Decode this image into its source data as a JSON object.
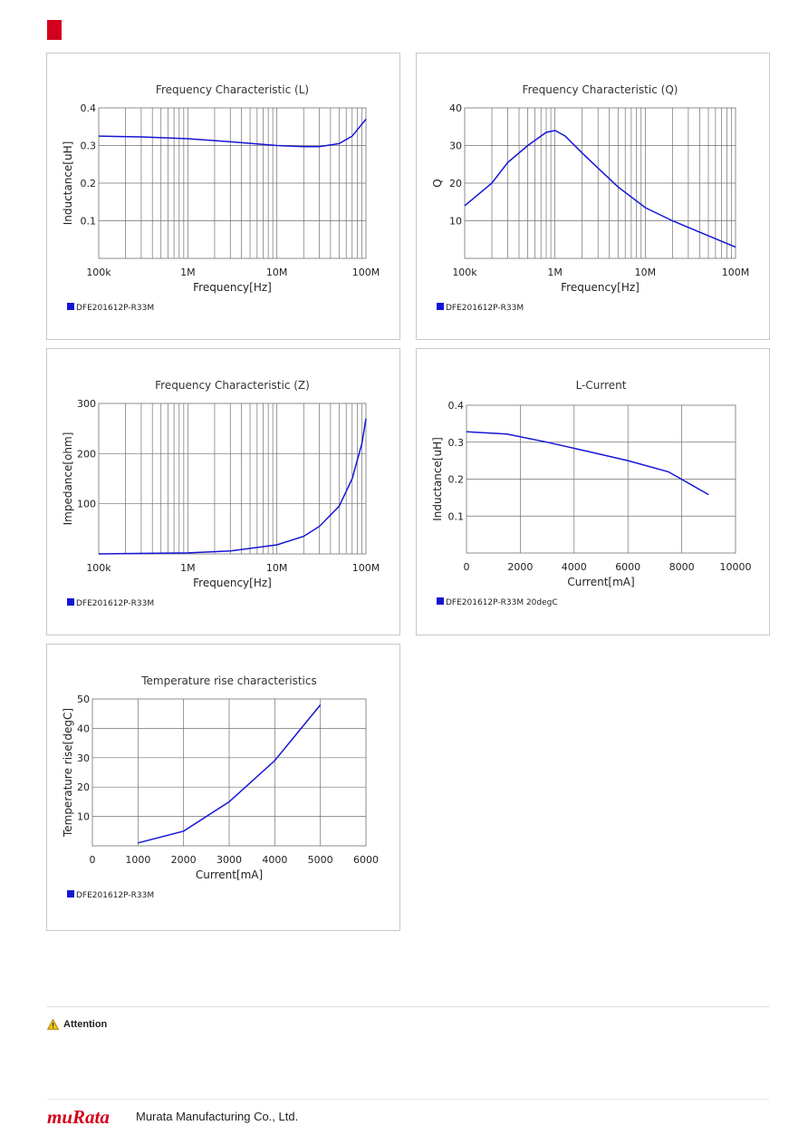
{
  "page": {
    "attention_label": "Attention",
    "company_name": "Murata Manufacturing Co., Ltd.",
    "logo_text": "muRata",
    "brand_color": "#d2001e",
    "series_color": "#1515d6"
  },
  "chart_data": [
    {
      "id": "freq-L",
      "type": "line",
      "title": "Frequency Characteristic (L)",
      "xlabel": "Frequency[Hz]",
      "ylabel": "Inductance[uH]",
      "xscale": "log",
      "xlim": [
        100000,
        100000000
      ],
      "ylim": [
        0,
        0.4
      ],
      "xticks": [
        {
          "v": 100000,
          "label": "100k"
        },
        {
          "v": 1000000,
          "label": "1M"
        },
        {
          "v": 10000000,
          "label": "10M"
        },
        {
          "v": 100000000,
          "label": "100M"
        }
      ],
      "yticks": [
        {
          "v": 0.1,
          "label": "0.1"
        },
        {
          "v": 0.2,
          "label": "0.2"
        },
        {
          "v": 0.3,
          "label": "0.3"
        },
        {
          "v": 0.4,
          "label": "0.4"
        }
      ],
      "legend": "DFE201612P-R33M",
      "series": [
        {
          "name": "DFE201612P-R33M",
          "x": [
            100000,
            300000,
            1000000,
            3000000,
            10000000,
            20000000,
            30000000,
            50000000,
            70000000,
            100000000
          ],
          "y": [
            0.325,
            0.323,
            0.318,
            0.31,
            0.3,
            0.297,
            0.297,
            0.305,
            0.325,
            0.37
          ]
        }
      ]
    },
    {
      "id": "freq-Q",
      "type": "line",
      "title": "Frequency Characteristic (Q)",
      "xlabel": "Frequency[Hz]",
      "ylabel": "Q",
      "xscale": "log",
      "xlim": [
        100000,
        100000000
      ],
      "ylim": [
        0,
        40
      ],
      "xticks": [
        {
          "v": 100000,
          "label": "100k"
        },
        {
          "v": 1000000,
          "label": "1M"
        },
        {
          "v": 10000000,
          "label": "10M"
        },
        {
          "v": 100000000,
          "label": "100M"
        }
      ],
      "yticks": [
        {
          "v": 10,
          "label": "10"
        },
        {
          "v": 20,
          "label": "20"
        },
        {
          "v": 30,
          "label": "30"
        },
        {
          "v": 40,
          "label": "40"
        }
      ],
      "legend": "DFE201612P-R33M",
      "series": [
        {
          "name": "DFE201612P-R33M",
          "x": [
            100000,
            200000,
            300000,
            500000,
            800000,
            1000000,
            1300000,
            2000000,
            3000000,
            5000000,
            10000000,
            20000000,
            50000000,
            100000000
          ],
          "y": [
            14,
            20,
            25.5,
            30,
            33.5,
            34,
            32.5,
            28,
            24,
            19,
            13.5,
            10,
            6,
            3
          ]
        }
      ]
    },
    {
      "id": "freq-Z",
      "type": "line",
      "title": "Frequency Characteristic (Z)",
      "xlabel": "Frequency[Hz]",
      "ylabel": "Impedance[ohm]",
      "xscale": "log",
      "xlim": [
        100000,
        100000000
      ],
      "ylim": [
        0,
        300
      ],
      "xticks": [
        {
          "v": 100000,
          "label": "100k"
        },
        {
          "v": 1000000,
          "label": "1M"
        },
        {
          "v": 10000000,
          "label": "10M"
        },
        {
          "v": 100000000,
          "label": "100M"
        }
      ],
      "yticks": [
        {
          "v": 100,
          "label": "100"
        },
        {
          "v": 200,
          "label": "200"
        },
        {
          "v": 300,
          "label": "300"
        }
      ],
      "legend": "DFE201612P-R33M",
      "series": [
        {
          "name": "DFE201612P-R33M",
          "x": [
            100000,
            1000000,
            3000000,
            10000000,
            20000000,
            30000000,
            50000000,
            70000000,
            90000000,
            100000000
          ],
          "y": [
            0,
            2,
            6,
            18,
            35,
            55,
            95,
            150,
            220,
            270
          ]
        }
      ]
    },
    {
      "id": "l-current",
      "type": "line",
      "title": "L-Current",
      "xlabel": "Current[mA]",
      "ylabel": "Inductance[uH]",
      "xscale": "linear",
      "xlim": [
        0,
        10000
      ],
      "ylim": [
        0,
        0.4
      ],
      "xticks": [
        {
          "v": 0,
          "label": "0"
        },
        {
          "v": 2000,
          "label": "2000"
        },
        {
          "v": 4000,
          "label": "4000"
        },
        {
          "v": 6000,
          "label": "6000"
        },
        {
          "v": 8000,
          "label": "8000"
        },
        {
          "v": 10000,
          "label": "10000"
        }
      ],
      "yticks": [
        {
          "v": 0.1,
          "label": "0.1"
        },
        {
          "v": 0.2,
          "label": "0.2"
        },
        {
          "v": 0.3,
          "label": "0.3"
        },
        {
          "v": 0.4,
          "label": "0.4"
        }
      ],
      "legend": "DFE201612P-R33M 20degC",
      "series": [
        {
          "name": "DFE201612P-R33M 20degC",
          "x": [
            0,
            1500,
            3000,
            4500,
            6000,
            7500,
            9000
          ],
          "y": [
            0.328,
            0.322,
            0.3,
            0.275,
            0.25,
            0.22,
            0.158
          ]
        }
      ]
    },
    {
      "id": "temp-rise",
      "type": "line",
      "title": "Temperature rise characteristics",
      "xlabel": "Current[mA]",
      "ylabel": "Temperature rise[degC]",
      "xscale": "linear",
      "xlim": [
        0,
        6000
      ],
      "ylim": [
        0,
        50
      ],
      "xticks": [
        {
          "v": 0,
          "label": "0"
        },
        {
          "v": 1000,
          "label": "1000"
        },
        {
          "v": 2000,
          "label": "2000"
        },
        {
          "v": 3000,
          "label": "3000"
        },
        {
          "v": 4000,
          "label": "4000"
        },
        {
          "v": 5000,
          "label": "5000"
        },
        {
          "v": 6000,
          "label": "6000"
        }
      ],
      "yticks": [
        {
          "v": 10,
          "label": "10"
        },
        {
          "v": 20,
          "label": "20"
        },
        {
          "v": 30,
          "label": "30"
        },
        {
          "v": 40,
          "label": "40"
        },
        {
          "v": 50,
          "label": "50"
        }
      ],
      "legend": "DFE201612P-R33M",
      "series": [
        {
          "name": "DFE201612P-R33M",
          "x": [
            1000,
            2000,
            3000,
            4000,
            5000
          ],
          "y": [
            1,
            5,
            15,
            29,
            48
          ]
        }
      ]
    }
  ]
}
